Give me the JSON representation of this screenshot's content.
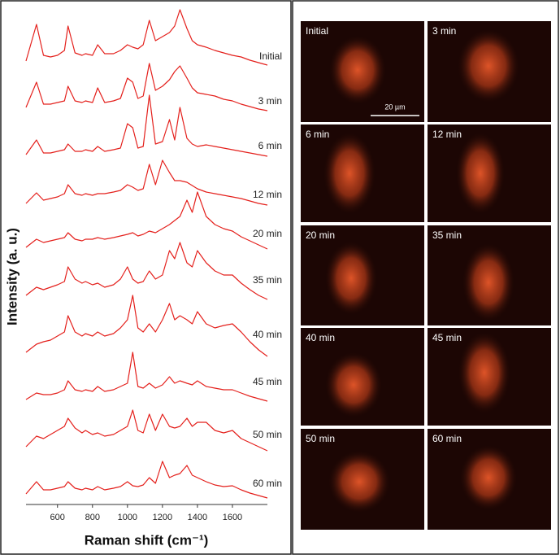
{
  "chart_data": {
    "type": "line",
    "y_label": "Intensity (a. u.)",
    "x_label": "Raman shift (cm⁻¹)",
    "xlim": [
      420,
      1800
    ],
    "xticks": [
      600,
      800,
      1000,
      1200,
      1400,
      1600
    ],
    "x": [
      420,
      480,
      520,
      560,
      600,
      640,
      660,
      700,
      740,
      760,
      800,
      830,
      870,
      920,
      960,
      1000,
      1030,
      1060,
      1090,
      1125,
      1160,
      1200,
      1240,
      1270,
      1300,
      1340,
      1370,
      1400,
      1450,
      1500,
      1550,
      1600,
      1650,
      1700,
      1750,
      1800
    ],
    "series": [
      {
        "name": "Initial",
        "color": "#e4201c",
        "values": [
          5,
          50,
          12,
          10,
          12,
          18,
          48,
          15,
          12,
          14,
          12,
          25,
          14,
          14,
          18,
          25,
          22,
          20,
          25,
          55,
          30,
          35,
          40,
          48,
          68,
          45,
          30,
          25,
          22,
          18,
          15,
          12,
          10,
          6,
          3,
          0
        ]
      },
      {
        "name": "3 min",
        "color": "#e4201c",
        "values": [
          4,
          35,
          8,
          8,
          10,
          12,
          30,
          12,
          10,
          12,
          10,
          28,
          10,
          12,
          15,
          40,
          35,
          15,
          18,
          58,
          25,
          30,
          38,
          48,
          55,
          40,
          28,
          22,
          20,
          18,
          14,
          12,
          8,
          5,
          2,
          0
        ]
      },
      {
        "name": "6 min",
        "color": "#e4201c",
        "values": [
          2,
          20,
          4,
          4,
          6,
          8,
          15,
          6,
          6,
          8,
          6,
          12,
          6,
          8,
          10,
          40,
          35,
          10,
          12,
          75,
          15,
          18,
          45,
          20,
          60,
          22,
          15,
          12,
          14,
          12,
          10,
          8,
          6,
          4,
          2,
          0
        ]
      },
      {
        "name": "12 min",
        "color": "#e4201c",
        "values": [
          2,
          15,
          6,
          8,
          10,
          14,
          25,
          14,
          12,
          14,
          12,
          14,
          14,
          16,
          18,
          25,
          22,
          18,
          20,
          50,
          25,
          55,
          40,
          30,
          30,
          28,
          24,
          20,
          16,
          14,
          12,
          10,
          8,
          5,
          2,
          0
        ]
      },
      {
        "name": "20 min",
        "color": "#e4201c",
        "values": [
          2,
          12,
          8,
          10,
          12,
          14,
          20,
          12,
          10,
          12,
          12,
          14,
          12,
          14,
          16,
          18,
          20,
          16,
          18,
          22,
          20,
          25,
          30,
          35,
          40,
          60,
          45,
          70,
          40,
          30,
          25,
          22,
          15,
          10,
          5,
          0
        ]
      },
      {
        "name": "35 min",
        "color": "#e4201c",
        "values": [
          5,
          15,
          12,
          15,
          18,
          22,
          40,
          25,
          20,
          22,
          18,
          20,
          15,
          18,
          25,
          40,
          25,
          20,
          22,
          35,
          25,
          30,
          60,
          50,
          70,
          45,
          40,
          60,
          45,
          35,
          30,
          30,
          20,
          12,
          5,
          0
        ]
      },
      {
        "name": "40 min",
        "color": "#e4201c",
        "values": [
          5,
          15,
          18,
          20,
          25,
          30,
          50,
          30,
          25,
          28,
          25,
          30,
          25,
          28,
          35,
          45,
          75,
          35,
          30,
          40,
          30,
          45,
          65,
          45,
          50,
          45,
          40,
          55,
          40,
          35,
          38,
          40,
          30,
          18,
          8,
          0
        ]
      },
      {
        "name": "45 min",
        "color": "#e4201c",
        "values": [
          2,
          10,
          8,
          8,
          10,
          14,
          25,
          14,
          12,
          14,
          12,
          18,
          12,
          14,
          18,
          22,
          60,
          18,
          16,
          22,
          16,
          20,
          30,
          22,
          25,
          22,
          20,
          25,
          18,
          16,
          14,
          14,
          10,
          6,
          3,
          0
        ]
      },
      {
        "name": "50 min",
        "color": "#e4201c",
        "values": [
          5,
          18,
          15,
          20,
          25,
          30,
          40,
          28,
          22,
          25,
          20,
          22,
          18,
          20,
          25,
          30,
          50,
          25,
          22,
          45,
          25,
          45,
          30,
          28,
          30,
          40,
          30,
          35,
          35,
          25,
          22,
          25,
          15,
          10,
          5,
          0
        ]
      },
      {
        "name": "60 min",
        "color": "#e4201c",
        "values": [
          5,
          20,
          10,
          10,
          12,
          14,
          20,
          12,
          10,
          12,
          10,
          14,
          10,
          12,
          14,
          20,
          15,
          14,
          16,
          25,
          18,
          45,
          25,
          28,
          30,
          40,
          28,
          25,
          20,
          16,
          14,
          15,
          10,
          6,
          3,
          0
        ]
      }
    ]
  },
  "images": {
    "labels": [
      "Initial",
      "3 min",
      "6 min",
      "12 min",
      "20 min",
      "35 min",
      "40 min",
      "45 min",
      "50 min",
      "60 min"
    ],
    "scale_bar": "20 µm"
  }
}
